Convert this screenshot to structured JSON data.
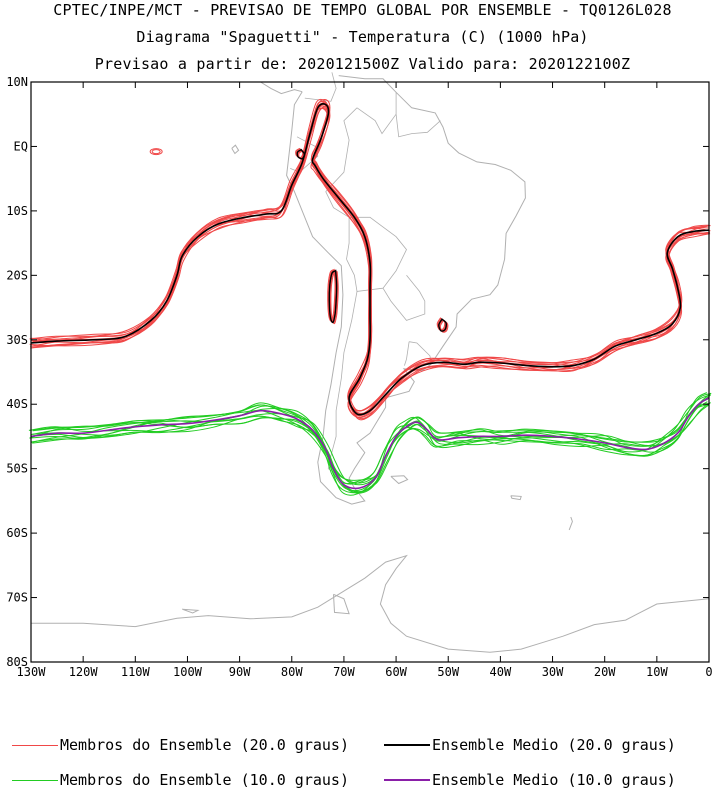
{
  "title": {
    "line1": "CPTEC/INPE/MCT - PREVISAO DE TEMPO GLOBAL POR ENSEMBLE - TQ0126L028",
    "line2": "Diagrama \"Spaguetti\" - Temperatura (C) (1000 hPa)",
    "line3": "Previsao a partir de: 2020121500Z  Valido para: 2020122100Z"
  },
  "map": {
    "lon_range": [
      -130,
      0
    ],
    "lat_range": [
      -80,
      10
    ],
    "lat_ticks": [
      "10N",
      "EQ",
      "10S",
      "20S",
      "30S",
      "40S",
      "50S",
      "60S",
      "70S",
      "80S"
    ],
    "lon_ticks": [
      "130W",
      "120W",
      "110W",
      "100W",
      "90W",
      "80W",
      "70W",
      "60W",
      "50W",
      "40W",
      "30W",
      "20W",
      "10W",
      "0"
    ],
    "colors": {
      "coast": "#b0b0b0",
      "members_20": "#f04848",
      "mean_20": "#000000",
      "members_10": "#22cc22",
      "mean_10": "#8a1fa8"
    },
    "isotherm_20": [
      [
        -130,
        -30.5
      ],
      [
        -125,
        -30.2
      ],
      [
        -118,
        -30
      ],
      [
        -112,
        -29.5
      ],
      [
        -107,
        -27
      ],
      [
        -104,
        -24
      ],
      [
        -102,
        -20
      ],
      [
        -101,
        -17
      ],
      [
        -98,
        -14
      ],
      [
        -94,
        -12
      ],
      [
        -89,
        -11
      ],
      [
        -85,
        -10.5
      ],
      [
        -82,
        -10
      ],
      [
        -80,
        -6
      ],
      [
        -78,
        -2.5
      ],
      [
        -76.5,
        2
      ],
      [
        -75,
        6
      ],
      [
        -73.5,
        6.5
      ],
      [
        -73,
        5
      ],
      [
        -74.5,
        1
      ],
      [
        -76,
        -2
      ],
      [
        -75.5,
        -3
      ],
      [
        -74,
        -5
      ],
      [
        -71,
        -8
      ],
      [
        -68,
        -11
      ],
      [
        -66,
        -14
      ],
      [
        -65,
        -18
      ],
      [
        -65,
        -22
      ],
      [
        -65,
        -26
      ],
      [
        -65,
        -30
      ],
      [
        -65.5,
        -33
      ],
      [
        -67,
        -36
      ],
      [
        -69,
        -39
      ],
      [
        -67.5,
        -41.5
      ],
      [
        -65,
        -41
      ],
      [
        -62,
        -38.5
      ],
      [
        -59,
        -36
      ],
      [
        -55,
        -34
      ],
      [
        -51,
        -33.5
      ],
      [
        -47,
        -33.8
      ],
      [
        -44,
        -33.5
      ],
      [
        -40,
        -33.6
      ],
      [
        -35,
        -34
      ],
      [
        -30,
        -34.2
      ],
      [
        -26,
        -34
      ],
      [
        -22,
        -33
      ],
      [
        -18,
        -31
      ],
      [
        -14,
        -30
      ],
      [
        -10,
        -29
      ],
      [
        -7,
        -27.5
      ],
      [
        -5.5,
        -25
      ],
      [
        -6,
        -22
      ],
      [
        -7,
        -19
      ],
      [
        -8,
        -16.5
      ],
      [
        -6,
        -14
      ],
      [
        -3,
        -13.2
      ],
      [
        0,
        -13
      ]
    ],
    "isotherm_20_islands": [
      [
        [
          -71.6,
          -19.3
        ],
        [
          -71.4,
          -21.5
        ],
        [
          -71.5,
          -24
        ],
        [
          -71.7,
          -26
        ],
        [
          -72.1,
          -27.3
        ],
        [
          -72.6,
          -26.5
        ],
        [
          -72.8,
          -24
        ],
        [
          -72.7,
          -21.5
        ],
        [
          -72.3,
          -19.7
        ],
        [
          -71.6,
          -19.3
        ]
      ],
      [
        [
          -51.2,
          -26.8
        ],
        [
          -50.4,
          -27.4
        ],
        [
          -50.6,
          -28.4
        ],
        [
          -51.4,
          -28.6
        ],
        [
          -51.8,
          -27.7
        ],
        [
          -51.2,
          -26.8
        ]
      ],
      [
        [
          -78.2,
          -0.5
        ],
        [
          -77.6,
          -1.2
        ],
        [
          -78.0,
          -1.9
        ],
        [
          -78.8,
          -1.6
        ],
        [
          -78.9,
          -0.9
        ],
        [
          -78.2,
          -0.5
        ]
      ]
    ],
    "isotherm_10": [
      [
        -130,
        -45
      ],
      [
        -125,
        -44.5
      ],
      [
        -120,
        -44.5
      ],
      [
        -115,
        -44
      ],
      [
        -110,
        -43.5
      ],
      [
        -105,
        -43.2
      ],
      [
        -100,
        -43
      ],
      [
        -95,
        -42.5
      ],
      [
        -90,
        -41.8
      ],
      [
        -86,
        -41
      ],
      [
        -82,
        -41.5
      ],
      [
        -79,
        -42.3
      ],
      [
        -76,
        -44
      ],
      [
        -73.5,
        -47
      ],
      [
        -72,
        -50
      ],
      [
        -70,
        -52.5
      ],
      [
        -67,
        -53
      ],
      [
        -64,
        -51.5
      ],
      [
        -62,
        -48
      ],
      [
        -60,
        -45
      ],
      [
        -58,
        -43.5
      ],
      [
        -56,
        -42.8
      ],
      [
        -54,
        -44
      ],
      [
        -52,
        -45.5
      ],
      [
        -48,
        -45.2
      ],
      [
        -44,
        -45
      ],
      [
        -40,
        -45
      ],
      [
        -35,
        -44.8
      ],
      [
        -30,
        -45
      ],
      [
        -25,
        -45.4
      ],
      [
        -20,
        -46
      ],
      [
        -16,
        -46.7
      ],
      [
        -12,
        -47
      ],
      [
        -9,
        -46.2
      ],
      [
        -6,
        -44.5
      ],
      [
        -4,
        -42
      ],
      [
        -2,
        -40
      ],
      [
        0,
        -39
      ]
    ],
    "coastlines": [
      [
        [
          -78,
          8.5
        ],
        [
          -79.5,
          6.5
        ],
        [
          -80,
          2.5
        ],
        [
          -80.5,
          -1
        ],
        [
          -81,
          -4.5
        ],
        [
          -79.5,
          -7
        ],
        [
          -77,
          -12
        ],
        [
          -76,
          -14
        ],
        [
          -73,
          -16.5
        ],
        [
          -70.5,
          -18.5
        ],
        [
          -70.2,
          -23
        ],
        [
          -70.5,
          -28
        ],
        [
          -71.5,
          -32
        ],
        [
          -72.5,
          -37
        ],
        [
          -73.5,
          -41
        ],
        [
          -74,
          -45
        ],
        [
          -75,
          -49
        ],
        [
          -74.5,
          -52
        ],
        [
          -71.5,
          -54.5
        ],
        [
          -68.5,
          -55.5
        ],
        [
          -66,
          -55
        ],
        [
          -68,
          -53
        ],
        [
          -69,
          -51.5
        ],
        [
          -68,
          -50
        ],
        [
          -66,
          -47.5
        ],
        [
          -67.5,
          -46
        ],
        [
          -65,
          -44.5
        ],
        [
          -63.5,
          -42.5
        ],
        [
          -62,
          -40.5
        ],
        [
          -62,
          -39
        ],
        [
          -57.5,
          -38
        ],
        [
          -56.5,
          -36.5
        ],
        [
          -58.5,
          -34.5
        ],
        [
          -55,
          -34.8
        ],
        [
          -53.3,
          -33.8
        ],
        [
          -51,
          -31
        ],
        [
          -48.5,
          -28
        ],
        [
          -48.3,
          -26
        ],
        [
          -45.5,
          -23.7
        ],
        [
          -42,
          -23
        ],
        [
          -40.5,
          -21.5
        ],
        [
          -39.2,
          -17.5
        ],
        [
          -38.9,
          -13.5
        ],
        [
          -37,
          -10.8
        ],
        [
          -35.2,
          -8
        ],
        [
          -35.3,
          -5.5
        ],
        [
          -38,
          -3.7
        ],
        [
          -41,
          -2.8
        ],
        [
          -44.5,
          -2.4
        ],
        [
          -48,
          -1
        ],
        [
          -50,
          0.5
        ],
        [
          -51,
          3
        ],
        [
          -52.5,
          5.2
        ],
        [
          -57,
          6
        ],
        [
          -60,
          8.4
        ],
        [
          -62.5,
          10.5
        ],
        [
          -66,
          10.5
        ],
        [
          -71,
          11
        ]
      ],
      [
        [
          -130,
          10
        ],
        [
          -110,
          10
        ],
        [
          -98,
          10
        ],
        [
          -86,
          10
        ],
        [
          -84,
          9
        ],
        [
          -82,
          8.2
        ],
        [
          -79.5,
          8.8
        ],
        [
          -78,
          8.5
        ]
      ],
      [
        [
          -91.5,
          -0.3
        ],
        [
          -90.8,
          0.2
        ],
        [
          -90.2,
          -0.6
        ],
        [
          -90.9,
          -1.1
        ],
        [
          -91.5,
          -0.3
        ]
      ],
      [
        [
          -61,
          -51.2
        ],
        [
          -58.5,
          -51.1
        ],
        [
          -57.8,
          -51.7
        ],
        [
          -59.5,
          -52.3
        ],
        [
          -61,
          -51.2
        ]
      ],
      [
        [
          -38,
          -54.2
        ],
        [
          -36,
          -54.3
        ],
        [
          -36.2,
          -54.8
        ],
        [
          -37.8,
          -54.6
        ],
        [
          -38,
          -54.2
        ]
      ],
      [
        [
          -26.5,
          -57.5
        ],
        [
          -26.2,
          -58.2
        ],
        [
          -26.8,
          -59.5
        ]
      ],
      [
        [
          -130,
          -74
        ],
        [
          -120,
          -74
        ],
        [
          -110,
          -74.5
        ],
        [
          -102,
          -73.2
        ],
        [
          -96,
          -72.8
        ],
        [
          -88,
          -73.3
        ],
        [
          -80,
          -73
        ],
        [
          -75,
          -71.5
        ],
        [
          -70,
          -69
        ],
        [
          -66,
          -67
        ],
        [
          -62,
          -64.5
        ],
        [
          -58,
          -63.5
        ],
        [
          -60,
          -65.5
        ],
        [
          -62,
          -68
        ],
        [
          -63,
          -71
        ],
        [
          -61,
          -74
        ],
        [
          -58,
          -76
        ],
        [
          -50,
          -78
        ],
        [
          -42,
          -78.5
        ],
        [
          -36,
          -78
        ],
        [
          -32,
          -77
        ],
        [
          -28,
          -76
        ],
        [
          -22,
          -74.2
        ],
        [
          -16,
          -73.5
        ],
        [
          -10,
          -71
        ],
        [
          -5,
          -70.6
        ],
        [
          0,
          -70.2
        ]
      ],
      [
        [
          -72,
          -69.5
        ],
        [
          -70,
          -70.2
        ],
        [
          -69,
          -72.5
        ],
        [
          -71.8,
          -72.3
        ],
        [
          -72,
          -69.5
        ]
      ],
      [
        [
          -101,
          -71.8
        ],
        [
          -98,
          -72
        ],
        [
          -99,
          -72.4
        ],
        [
          -101,
          -71.8
        ]
      ]
    ],
    "borders": [
      [
        [
          -77.5,
          7.5
        ],
        [
          -72.5,
          7
        ],
        [
          -71.5,
          9
        ],
        [
          -72.3,
          11.5
        ]
      ],
      [
        [
          -67.5,
          6
        ],
        [
          -70,
          4
        ],
        [
          -69,
          1
        ],
        [
          -70,
          -4
        ],
        [
          -73.5,
          -7
        ]
      ],
      [
        [
          -79,
          1.5
        ],
        [
          -75.5,
          0
        ],
        [
          -75.3,
          -0.5
        ],
        [
          -75,
          -1.5
        ],
        [
          -78.5,
          -4
        ],
        [
          -80.3,
          -3.4
        ]
      ],
      [
        [
          -73.5,
          -7
        ],
        [
          -72,
          -9.5
        ],
        [
          -69,
          -11
        ],
        [
          -69,
          -15
        ],
        [
          -69.5,
          -17.5
        ]
      ],
      [
        [
          -69.5,
          -17.5
        ],
        [
          -68,
          -20
        ],
        [
          -67.5,
          -22.5
        ],
        [
          -62.5,
          -22
        ],
        [
          -60,
          -19.3
        ],
        [
          -58,
          -16
        ],
        [
          -60,
          -14
        ],
        [
          -65,
          -11
        ],
        [
          -69,
          -11
        ]
      ],
      [
        [
          -62.5,
          -22
        ],
        [
          -61,
          -24
        ],
        [
          -58,
          -27
        ],
        [
          -54.5,
          -26
        ],
        [
          -54.5,
          -24
        ],
        [
          -55.5,
          -22.5
        ],
        [
          -58,
          -20
        ]
      ],
      [
        [
          -67.5,
          -22.5
        ],
        [
          -68.5,
          -27
        ],
        [
          -70,
          -32
        ],
        [
          -70.5,
          -36
        ],
        [
          -71.5,
          -41
        ],
        [
          -71.5,
          -45
        ],
        [
          -72.5,
          -48
        ],
        [
          -73,
          -50
        ],
        [
          -69,
          -52
        ]
      ],
      [
        [
          -57.5,
          -30.3
        ],
        [
          -56,
          -30.5
        ],
        [
          -53.5,
          -32.5
        ],
        [
          -53.3,
          -33.8
        ]
      ],
      [
        [
          -57.5,
          -30.3
        ],
        [
          -58,
          -33
        ],
        [
          -58.4,
          -34
        ]
      ],
      [
        [
          -60,
          8.4
        ],
        [
          -60,
          5
        ],
        [
          -59.5,
          1.5
        ],
        [
          -57,
          2
        ],
        [
          -54,
          2.2
        ],
        [
          -51.5,
          4
        ]
      ],
      [
        [
          -67.5,
          6
        ],
        [
          -64,
          4
        ],
        [
          -62.7,
          2
        ],
        [
          -60,
          5
        ]
      ]
    ]
  },
  "legend": {
    "members_20": "Membros do Ensemble (20.0 graus)",
    "mean_20": "Ensemble Medio (20.0 graus)",
    "members_10": "Membros do Ensemble (10.0 graus)",
    "mean_10": "Ensemble Medio (10.0 graus)"
  }
}
